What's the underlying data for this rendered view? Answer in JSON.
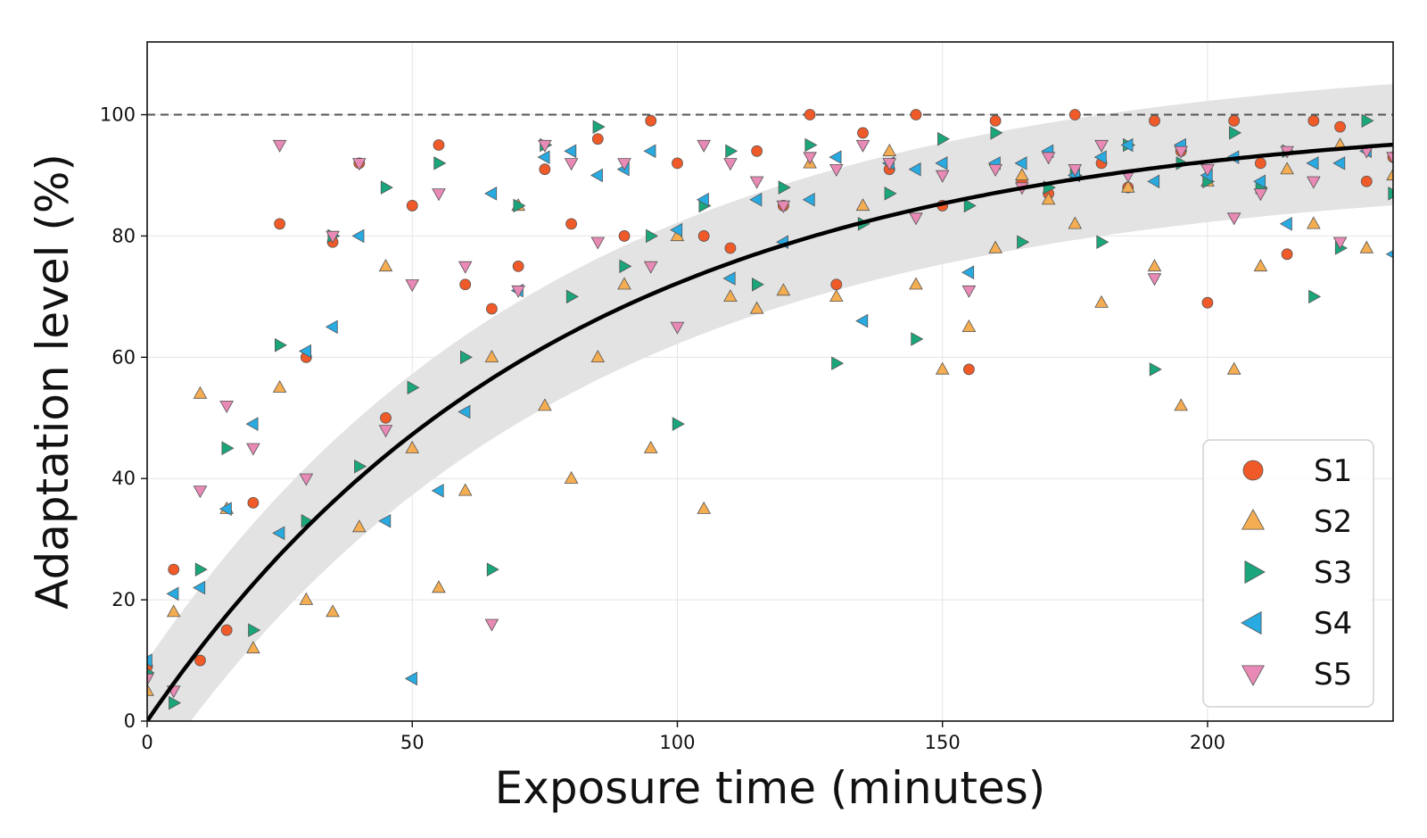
{
  "chart_data": {
    "type": "scatter",
    "title": "",
    "xlabel": "Exposure time (minutes)",
    "ylabel": "Adaptation level (%)",
    "xlim": [
      0,
      235
    ],
    "ylim": [
      0,
      112
    ],
    "x_ticks": [
      0,
      50,
      100,
      150,
      200
    ],
    "y_ticks": [
      0,
      20,
      40,
      60,
      80,
      100
    ],
    "grid": true,
    "legend_position": "lower-right",
    "reference_line": {
      "y": 100,
      "style": "dashed",
      "color": "#555555"
    },
    "fit_curve": {
      "model": "exponential",
      "asymptote": 100,
      "rate": 0.0128,
      "band_halfwidth": 10,
      "color": "#000000",
      "band_color": "#e3e3e3"
    },
    "series": [
      {
        "name": "S1",
        "marker": "circle",
        "color": "#f05a28",
        "points": [
          [
            0,
            9
          ],
          [
            5,
            25
          ],
          [
            10,
            10
          ],
          [
            15,
            15
          ],
          [
            20,
            36
          ],
          [
            25,
            82
          ],
          [
            30,
            60
          ],
          [
            35,
            79
          ],
          [
            40,
            92
          ],
          [
            45,
            50
          ],
          [
            50,
            85
          ],
          [
            55,
            95
          ],
          [
            60,
            72
          ],
          [
            65,
            68
          ],
          [
            70,
            75
          ],
          [
            75,
            91
          ],
          [
            80,
            82
          ],
          [
            85,
            96
          ],
          [
            90,
            80
          ],
          [
            95,
            99
          ],
          [
            100,
            92
          ],
          [
            105,
            80
          ],
          [
            110,
            78
          ],
          [
            115,
            94
          ],
          [
            120,
            85
          ],
          [
            125,
            100
          ],
          [
            130,
            72
          ],
          [
            135,
            97
          ],
          [
            140,
            91
          ],
          [
            145,
            100
          ],
          [
            150,
            85
          ],
          [
            155,
            58
          ],
          [
            160,
            99
          ],
          [
            165,
            89
          ],
          [
            170,
            87
          ],
          [
            175,
            100
          ],
          [
            180,
            92
          ],
          [
            185,
            88
          ],
          [
            190,
            99
          ],
          [
            195,
            94
          ],
          [
            200,
            69
          ],
          [
            205,
            99
          ],
          [
            210,
            92
          ],
          [
            215,
            77
          ],
          [
            220,
            99
          ],
          [
            225,
            98
          ],
          [
            230,
            89
          ],
          [
            235,
            93
          ]
        ]
      },
      {
        "name": "S2",
        "marker": "triangle-up",
        "color": "#f5ad52",
        "points": [
          [
            0,
            5
          ],
          [
            5,
            18
          ],
          [
            10,
            54
          ],
          [
            15,
            35
          ],
          [
            20,
            12
          ],
          [
            25,
            55
          ],
          [
            30,
            20
          ],
          [
            35,
            18
          ],
          [
            40,
            32
          ],
          [
            45,
            75
          ],
          [
            50,
            45
          ],
          [
            55,
            22
          ],
          [
            60,
            38
          ],
          [
            65,
            60
          ],
          [
            70,
            85
          ],
          [
            75,
            52
          ],
          [
            80,
            40
          ],
          [
            85,
            60
          ],
          [
            90,
            72
          ],
          [
            95,
            45
          ],
          [
            100,
            80
          ],
          [
            105,
            35
          ],
          [
            110,
            70
          ],
          [
            115,
            68
          ],
          [
            120,
            71
          ],
          [
            125,
            92
          ],
          [
            130,
            70
          ],
          [
            135,
            85
          ],
          [
            140,
            94
          ],
          [
            145,
            72
          ],
          [
            150,
            58
          ],
          [
            155,
            65
          ],
          [
            160,
            78
          ],
          [
            165,
            90
          ],
          [
            170,
            86
          ],
          [
            175,
            82
          ],
          [
            180,
            69
          ],
          [
            185,
            88
          ],
          [
            190,
            75
          ],
          [
            195,
            52
          ],
          [
            200,
            89
          ],
          [
            205,
            58
          ],
          [
            210,
            75
          ],
          [
            215,
            91
          ],
          [
            220,
            82
          ],
          [
            225,
            95
          ],
          [
            230,
            78
          ],
          [
            235,
            90
          ]
        ]
      },
      {
        "name": "S3",
        "marker": "triangle-right",
        "color": "#1aa57a",
        "points": [
          [
            0,
            8
          ],
          [
            5,
            3
          ],
          [
            10,
            25
          ],
          [
            15,
            45
          ],
          [
            20,
            15
          ],
          [
            25,
            62
          ],
          [
            30,
            33
          ],
          [
            35,
            80
          ],
          [
            40,
            42
          ],
          [
            45,
            88
          ],
          [
            50,
            55
          ],
          [
            55,
            92
          ],
          [
            60,
            60
          ],
          [
            65,
            25
          ],
          [
            70,
            85
          ],
          [
            75,
            95
          ],
          [
            80,
            70
          ],
          [
            85,
            98
          ],
          [
            90,
            75
          ],
          [
            95,
            80
          ],
          [
            100,
            49
          ],
          [
            105,
            85
          ],
          [
            110,
            94
          ],
          [
            115,
            72
          ],
          [
            120,
            88
          ],
          [
            125,
            95
          ],
          [
            130,
            59
          ],
          [
            135,
            82
          ],
          [
            140,
            87
          ],
          [
            145,
            63
          ],
          [
            150,
            96
          ],
          [
            155,
            85
          ],
          [
            160,
            97
          ],
          [
            165,
            79
          ],
          [
            170,
            88
          ],
          [
            175,
            90
          ],
          [
            180,
            79
          ],
          [
            185,
            95
          ],
          [
            190,
            58
          ],
          [
            195,
            92
          ],
          [
            200,
            89
          ],
          [
            205,
            97
          ],
          [
            210,
            88
          ],
          [
            215,
            94
          ],
          [
            220,
            70
          ],
          [
            225,
            78
          ],
          [
            230,
            99
          ],
          [
            235,
            87
          ]
        ]
      },
      {
        "name": "S4",
        "marker": "triangle-left",
        "color": "#29aae1",
        "points": [
          [
            0,
            10
          ],
          [
            5,
            21
          ],
          [
            10,
            22
          ],
          [
            15,
            35
          ],
          [
            20,
            49
          ],
          [
            25,
            31
          ],
          [
            30,
            61
          ],
          [
            35,
            65
          ],
          [
            40,
            80
          ],
          [
            45,
            33
          ],
          [
            50,
            7
          ],
          [
            55,
            38
          ],
          [
            60,
            51
          ],
          [
            65,
            87
          ],
          [
            70,
            71
          ],
          [
            75,
            93
          ],
          [
            80,
            94
          ],
          [
            85,
            90
          ],
          [
            90,
            91
          ],
          [
            95,
            94
          ],
          [
            100,
            81
          ],
          [
            105,
            86
          ],
          [
            110,
            73
          ],
          [
            115,
            86
          ],
          [
            120,
            79
          ],
          [
            125,
            86
          ],
          [
            130,
            93
          ],
          [
            135,
            66
          ],
          [
            140,
            92
          ],
          [
            145,
            91
          ],
          [
            150,
            92
          ],
          [
            155,
            74
          ],
          [
            160,
            92
          ],
          [
            165,
            92
          ],
          [
            170,
            94
          ],
          [
            175,
            90
          ],
          [
            180,
            93
          ],
          [
            185,
            95
          ],
          [
            190,
            89
          ],
          [
            195,
            95
          ],
          [
            200,
            90
          ],
          [
            205,
            93
          ],
          [
            210,
            89
          ],
          [
            215,
            82
          ],
          [
            220,
            92
          ],
          [
            225,
            92
          ],
          [
            230,
            94
          ],
          [
            235,
            77
          ]
        ]
      },
      {
        "name": "S5",
        "marker": "triangle-down",
        "color": "#e88ab5",
        "points": [
          [
            0,
            7
          ],
          [
            5,
            5
          ],
          [
            10,
            38
          ],
          [
            15,
            52
          ],
          [
            20,
            45
          ],
          [
            25,
            95
          ],
          [
            30,
            40
          ],
          [
            35,
            80
          ],
          [
            40,
            92
          ],
          [
            45,
            48
          ],
          [
            50,
            72
          ],
          [
            55,
            87
          ],
          [
            60,
            75
          ],
          [
            65,
            16
          ],
          [
            70,
            71
          ],
          [
            75,
            95
          ],
          [
            80,
            92
          ],
          [
            85,
            79
          ],
          [
            90,
            92
          ],
          [
            95,
            75
          ],
          [
            100,
            65
          ],
          [
            105,
            95
          ],
          [
            110,
            92
          ],
          [
            115,
            89
          ],
          [
            120,
            85
          ],
          [
            125,
            93
          ],
          [
            130,
            91
          ],
          [
            135,
            95
          ],
          [
            140,
            92
          ],
          [
            145,
            83
          ],
          [
            150,
            90
          ],
          [
            155,
            71
          ],
          [
            160,
            91
          ],
          [
            165,
            88
          ],
          [
            170,
            93
          ],
          [
            175,
            91
          ],
          [
            180,
            95
          ],
          [
            185,
            90
          ],
          [
            190,
            73
          ],
          [
            195,
            94
          ],
          [
            200,
            91
          ],
          [
            205,
            83
          ],
          [
            210,
            87
          ],
          [
            215,
            94
          ],
          [
            220,
            89
          ],
          [
            225,
            79
          ],
          [
            230,
            94
          ],
          [
            235,
            93
          ]
        ]
      }
    ]
  }
}
